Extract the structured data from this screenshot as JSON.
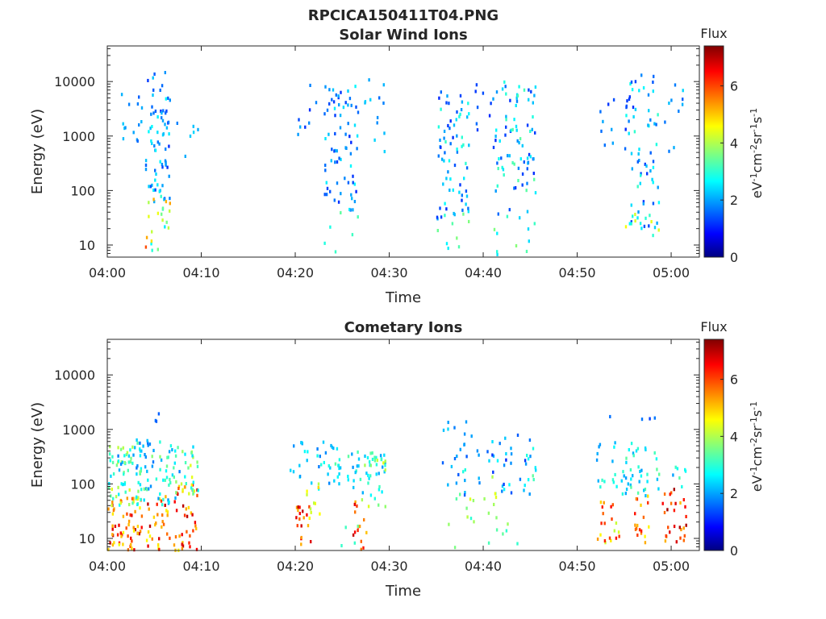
{
  "figure_title": "RPCICA150411T04.PNG",
  "chart_data": [
    {
      "type": "heatmap",
      "title": "Solar Wind Ions",
      "xlabel": "Time",
      "ylabel": "Energy (eV)",
      "yscale": "log",
      "x_ticks": [
        "04:00",
        "04:10",
        "04:20",
        "04:30",
        "04:40",
        "04:50",
        "05:00"
      ],
      "y_ticks": [
        "10",
        "100",
        "1000",
        "10000"
      ],
      "xlim": [
        "04:00",
        "05:03"
      ],
      "ylim": [
        6,
        45000
      ],
      "colorbar": {
        "label": "Flux",
        "units": "eV⁻¹cm⁻²sr⁻¹s⁻¹",
        "ticks": [
          "0",
          "2",
          "4",
          "6"
        ],
        "range": [
          0,
          7.4
        ],
        "colormap": "jet"
      },
      "grid": false,
      "clusters": [
        {
          "t": [
            "04:01",
            "04:03"
          ],
          "e": [
            500,
            8000
          ],
          "f": [
            1.5,
            2.5
          ],
          "n": 14
        },
        {
          "t": [
            "04:04",
            "04:06"
          ],
          "e": [
            60,
            15000
          ],
          "f": [
            1.2,
            2.8
          ],
          "n": 70
        },
        {
          "t": [
            "04:04",
            "04:06"
          ],
          "e": [
            7,
            100
          ],
          "f": [
            2.5,
            6.0
          ],
          "n": 22
        },
        {
          "t": [
            "04:07",
            "04:09"
          ],
          "e": [
            400,
            2500
          ],
          "f": [
            1.5,
            2.5
          ],
          "n": 6
        },
        {
          "t": [
            "04:20",
            "04:23"
          ],
          "e": [
            1000,
            12000
          ],
          "f": [
            1.2,
            2.2
          ],
          "n": 10
        },
        {
          "t": [
            "04:23",
            "04:26"
          ],
          "e": [
            40,
            10000
          ],
          "f": [
            1.2,
            2.8
          ],
          "n": 70
        },
        {
          "t": [
            "04:23",
            "04:26"
          ],
          "e": [
            6,
            40
          ],
          "f": [
            2.5,
            3.5
          ],
          "n": 6
        },
        {
          "t": [
            "04:27",
            "04:29"
          ],
          "e": [
            500,
            12000
          ],
          "f": [
            1.5,
            2.5
          ],
          "n": 12
        },
        {
          "t": [
            "04:35",
            "04:38"
          ],
          "e": [
            30,
            10000
          ],
          "f": [
            1.2,
            3.2
          ],
          "n": 70
        },
        {
          "t": [
            "04:35",
            "04:38"
          ],
          "e": [
            6,
            40
          ],
          "f": [
            2.5,
            3.8
          ],
          "n": 8
        },
        {
          "t": [
            "04:39",
            "04:41"
          ],
          "e": [
            800,
            12000
          ],
          "f": [
            1.2,
            2.2
          ],
          "n": 10
        },
        {
          "t": [
            "04:41",
            "04:45"
          ],
          "e": [
            30,
            10000
          ],
          "f": [
            1.2,
            3.5
          ],
          "n": 80
        },
        {
          "t": [
            "04:41",
            "04:45"
          ],
          "e": [
            6,
            40
          ],
          "f": [
            2.5,
            3.8
          ],
          "n": 10
        },
        {
          "t": [
            "04:52",
            "04:54"
          ],
          "e": [
            600,
            9000
          ],
          "f": [
            1.2,
            2.2
          ],
          "n": 8
        },
        {
          "t": [
            "04:55",
            "04:58"
          ],
          "e": [
            20,
            14000
          ],
          "f": [
            1.2,
            3.2
          ],
          "n": 70
        },
        {
          "t": [
            "04:55",
            "04:58"
          ],
          "e": [
            7,
            40
          ],
          "f": [
            2.5,
            5.0
          ],
          "n": 8
        },
        {
          "t": [
            "04:59",
            "05:01"
          ],
          "e": [
            500,
            9000
          ],
          "f": [
            1.5,
            2.5
          ],
          "n": 10
        }
      ]
    },
    {
      "type": "heatmap",
      "title": "Cometary Ions",
      "xlabel": "Time",
      "ylabel": "Energy (eV)",
      "yscale": "log",
      "x_ticks": [
        "04:00",
        "04:10",
        "04:20",
        "04:30",
        "04:40",
        "04:50",
        "05:00"
      ],
      "y_ticks": [
        "10",
        "100",
        "1000",
        "10000"
      ],
      "xlim": [
        "04:00",
        "05:03"
      ],
      "ylim": [
        6,
        45000
      ],
      "colorbar": {
        "label": "Flux",
        "units": "eV⁻¹cm⁻²sr⁻¹s⁻¹",
        "ticks": [
          "0",
          "2",
          "4",
          "6"
        ],
        "range": [
          0,
          7.4
        ],
        "colormap": "jet"
      },
      "grid": false,
      "clusters": [
        {
          "t": [
            "04:00",
            "04:03"
          ],
          "e": [
            6,
            60
          ],
          "f": [
            4.5,
            7.0
          ],
          "n": 60
        },
        {
          "t": [
            "04:00",
            "04:03"
          ],
          "e": [
            40,
            500
          ],
          "f": [
            2.5,
            4.5
          ],
          "n": 60
        },
        {
          "t": [
            "04:01",
            "04:04"
          ],
          "e": [
            150,
            700
          ],
          "f": [
            1.5,
            2.5
          ],
          "n": 20
        },
        {
          "t": [
            "04:04",
            "04:06"
          ],
          "e": [
            6,
            60
          ],
          "f": [
            4.5,
            7.0
          ],
          "n": 30
        },
        {
          "t": [
            "04:03",
            "04:07"
          ],
          "e": [
            40,
            600
          ],
          "f": [
            1.8,
            3.8
          ],
          "n": 50
        },
        {
          "t": [
            "04:05",
            "04:05"
          ],
          "e": [
            1000,
            2000
          ],
          "f": [
            1.2,
            1.8
          ],
          "n": 3
        },
        {
          "t": [
            "04:07",
            "04:09"
          ],
          "e": [
            6,
            100
          ],
          "f": [
            4.5,
            7.0
          ],
          "n": 40
        },
        {
          "t": [
            "04:07",
            "04:09"
          ],
          "e": [
            60,
            500
          ],
          "f": [
            2.5,
            4.5
          ],
          "n": 30
        },
        {
          "t": [
            "04:20",
            "04:21"
          ],
          "e": [
            6,
            40
          ],
          "f": [
            5.0,
            7.0
          ],
          "n": 18
        },
        {
          "t": [
            "04:19",
            "04:24"
          ],
          "e": [
            80,
            600
          ],
          "f": [
            1.8,
            3.0
          ],
          "n": 35
        },
        {
          "t": [
            "04:21",
            "04:22"
          ],
          "e": [
            20,
            120
          ],
          "f": [
            4.0,
            5.0
          ],
          "n": 10
        },
        {
          "t": [
            "04:24",
            "04:29"
          ],
          "e": [
            60,
            400
          ],
          "f": [
            2.0,
            3.5
          ],
          "n": 45
        },
        {
          "t": [
            "04:26",
            "04:27"
          ],
          "e": [
            6,
            50
          ],
          "f": [
            5.0,
            7.0
          ],
          "n": 14
        },
        {
          "t": [
            "04:27",
            "04:29"
          ],
          "e": [
            30,
            300
          ],
          "f": [
            3.0,
            4.5
          ],
          "n": 16
        },
        {
          "t": [
            "04:23",
            "04:26"
          ],
          "e": [
            6,
            20
          ],
          "f": [
            3.0,
            3.8
          ],
          "n": 4
        },
        {
          "t": [
            "04:35",
            "04:39"
          ],
          "e": [
            60,
            1500
          ],
          "f": [
            1.5,
            2.5
          ],
          "n": 25
        },
        {
          "t": [
            "04:37",
            "04:39"
          ],
          "e": [
            20,
            200
          ],
          "f": [
            3.0,
            4.5
          ],
          "n": 10
        },
        {
          "t": [
            "04:40",
            "04:45"
          ],
          "e": [
            60,
            800
          ],
          "f": [
            1.2,
            2.8
          ],
          "n": 30
        },
        {
          "t": [
            "04:40",
            "04:41"
          ],
          "e": [
            20,
            150
          ],
          "f": [
            3.5,
            4.5
          ],
          "n": 8
        },
        {
          "t": [
            "04:44",
            "04:45"
          ],
          "e": [
            60,
            500
          ],
          "f": [
            2.5,
            3.5
          ],
          "n": 8
        },
        {
          "t": [
            "04:36",
            "04:45"
          ],
          "e": [
            6,
            20
          ],
          "f": [
            3.0,
            4.0
          ],
          "n": 8
        },
        {
          "t": [
            "04:52",
            "04:55"
          ],
          "e": [
            60,
            600
          ],
          "f": [
            2.0,
            3.2
          ],
          "n": 25
        },
        {
          "t": [
            "04:52",
            "04:54"
          ],
          "e": [
            7,
            50
          ],
          "f": [
            4.0,
            6.5
          ],
          "n": 20
        },
        {
          "t": [
            "04:55",
            "04:58"
          ],
          "e": [
            60,
            600
          ],
          "f": [
            2.0,
            3.5
          ],
          "n": 25
        },
        {
          "t": [
            "04:56",
            "04:57"
          ],
          "e": [
            7,
            60
          ],
          "f": [
            4.5,
            6.5
          ],
          "n": 18
        },
        {
          "t": [
            "04:53",
            "04:58"
          ],
          "e": [
            1000,
            2500
          ],
          "f": [
            1.2,
            1.8
          ],
          "n": 4
        },
        {
          "t": [
            "04:59",
            "05:01"
          ],
          "e": [
            8,
            100
          ],
          "f": [
            5.0,
            7.2
          ],
          "n": 28
        },
        {
          "t": [
            "04:58",
            "05:01"
          ],
          "e": [
            60,
            300
          ],
          "f": [
            2.0,
            3.5
          ],
          "n": 12
        }
      ]
    }
  ]
}
